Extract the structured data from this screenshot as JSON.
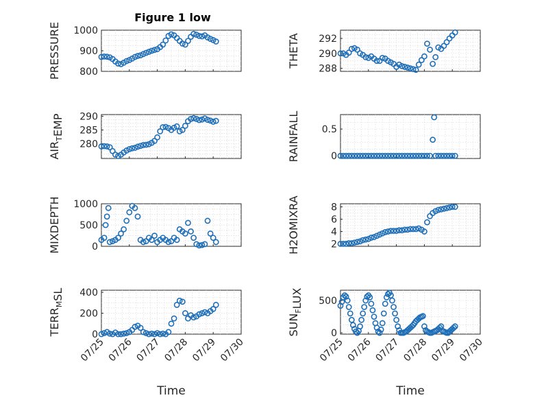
{
  "figure_title": "Figure 1 low",
  "colors": {
    "marker": "#1f6fb8",
    "axis": "#262626",
    "grid": "#dcdcdc"
  },
  "chart_data": [
    {
      "type": "scatter",
      "title": "Figure 1 low",
      "ylabel": "PRESSURE",
      "xlabel": "",
      "ylim": [
        800,
        1000
      ],
      "yticks": [
        "800",
        "900",
        "1000"
      ],
      "ytick_values": [
        800,
        900,
        1000
      ],
      "xlim": [
        0,
        5
      ],
      "grid": true,
      "show_xticklabels": false,
      "x": [
        0.0,
        0.1,
        0.2,
        0.3,
        0.4,
        0.5,
        0.6,
        0.7,
        0.8,
        0.9,
        1.0,
        1.1,
        1.2,
        1.3,
        1.4,
        1.5,
        1.6,
        1.7,
        1.8,
        1.9,
        2.0,
        2.1,
        2.2,
        2.3,
        2.4,
        2.5,
        2.6,
        2.7,
        2.8,
        2.9,
        3.0,
        3.1,
        3.2,
        3.3,
        3.4,
        3.5,
        3.6,
        3.7,
        3.8,
        3.9,
        4.0,
        4.1
      ],
      "y": [
        870,
        872,
        871,
        868,
        860,
        848,
        838,
        835,
        842,
        850,
        855,
        862,
        870,
        875,
        878,
        884,
        890,
        895,
        900,
        904,
        908,
        918,
        930,
        950,
        972,
        980,
        975,
        962,
        948,
        935,
        930,
        948,
        968,
        982,
        978,
        972,
        970,
        975,
        965,
        958,
        952,
        945
      ]
    },
    {
      "type": "scatter",
      "title": "",
      "ylabel": "THETA",
      "xlabel": "",
      "ylim": [
        287.6,
        293.1
      ],
      "yticks": [
        "288",
        "290",
        "292"
      ],
      "ytick_values": [
        288,
        290,
        292
      ],
      "xlim": [
        0,
        5
      ],
      "grid": true,
      "show_xticklabels": false,
      "x": [
        0.0,
        0.1,
        0.2,
        0.3,
        0.4,
        0.5,
        0.6,
        0.7,
        0.8,
        0.9,
        1.0,
        1.1,
        1.2,
        1.3,
        1.4,
        1.5,
        1.6,
        1.7,
        1.8,
        1.9,
        2.0,
        2.1,
        2.2,
        2.3,
        2.4,
        2.5,
        2.6,
        2.7,
        2.8,
        2.9,
        3.0,
        3.1,
        3.2,
        3.3,
        3.4,
        3.5,
        3.6,
        3.7,
        3.8,
        3.9,
        4.0,
        4.1
      ],
      "y": [
        290.0,
        290.0,
        289.8,
        290.1,
        290.6,
        290.7,
        290.5,
        290.0,
        289.8,
        289.5,
        289.4,
        289.6,
        289.3,
        289.0,
        289.0,
        289.4,
        289.3,
        289.0,
        288.8,
        288.6,
        288.2,
        288.5,
        288.3,
        288.2,
        288.1,
        288.0,
        287.9,
        287.8,
        288.5,
        289.1,
        289.6,
        291.3,
        290.5,
        288.6,
        289.5,
        290.8,
        290.6,
        291.0,
        291.5,
        292.0,
        292.4,
        292.8
      ]
    },
    {
      "type": "scatter",
      "title": "",
      "ylabel": "AIR_TEMP",
      "xlabel": "",
      "ylim": [
        274.6,
        290.6
      ],
      "yticks": [
        "280",
        "285",
        "290"
      ],
      "ytick_values": [
        280,
        285,
        290
      ],
      "xlim": [
        0,
        5
      ],
      "grid": true,
      "show_xticklabels": false,
      "x": [
        0.0,
        0.1,
        0.2,
        0.3,
        0.4,
        0.5,
        0.6,
        0.7,
        0.8,
        0.9,
        1.0,
        1.1,
        1.2,
        1.3,
        1.4,
        1.5,
        1.6,
        1.7,
        1.8,
        1.9,
        2.0,
        2.1,
        2.2,
        2.3,
        2.4,
        2.5,
        2.6,
        2.7,
        2.8,
        2.9,
        3.0,
        3.1,
        3.2,
        3.3,
        3.4,
        3.5,
        3.6,
        3.7,
        3.8,
        3.9,
        4.0,
        4.1
      ],
      "y": [
        279.0,
        279.1,
        279.0,
        278.7,
        277.3,
        276.0,
        275.5,
        276.0,
        276.8,
        277.5,
        278.0,
        278.3,
        278.5,
        278.9,
        279.2,
        279.5,
        279.6,
        279.8,
        280.3,
        281.0,
        282.3,
        284.5,
        286.0,
        286.1,
        285.7,
        285.0,
        285.8,
        286.3,
        284.5,
        285.0,
        286.5,
        288.2,
        289.0,
        289.3,
        289.0,
        288.6,
        288.8,
        289.2,
        288.7,
        288.4,
        288.0,
        288.3
      ]
    },
    {
      "type": "scatter",
      "title": "",
      "ylabel": "RAINFALL",
      "xlabel": "",
      "ylim": [
        -0.05,
        0.77
      ],
      "yticks": [
        "0",
        "0.5"
      ],
      "ytick_values": [
        0,
        0.5
      ],
      "xlim": [
        0,
        5
      ],
      "grid": true,
      "show_xticklabels": false,
      "x": [
        0.0,
        0.1,
        0.2,
        0.3,
        0.4,
        0.5,
        0.6,
        0.7,
        0.8,
        0.9,
        1.0,
        1.1,
        1.2,
        1.3,
        1.4,
        1.5,
        1.6,
        1.7,
        1.8,
        1.9,
        2.0,
        2.1,
        2.2,
        2.3,
        2.4,
        2.5,
        2.6,
        2.7,
        2.8,
        2.9,
        3.0,
        3.1,
        3.2,
        3.3,
        3.35,
        3.4,
        3.5,
        3.6,
        3.7,
        3.8,
        3.9,
        4.0,
        4.1
      ],
      "y": [
        0,
        0,
        0,
        0,
        0,
        0,
        0,
        0,
        0,
        0,
        0,
        0,
        0,
        0,
        0,
        0,
        0,
        0,
        0,
        0,
        0,
        0,
        0,
        0,
        0,
        0,
        0,
        0,
        0,
        0,
        0,
        0,
        0,
        0.3,
        0.72,
        0,
        0,
        0,
        0,
        0,
        0,
        0,
        0
      ]
    },
    {
      "type": "scatter",
      "title": "",
      "ylabel": "MIXDEPTH",
      "xlabel": "",
      "ylim": [
        0,
        1000
      ],
      "yticks": [
        "0",
        "500",
        "1000"
      ],
      "ytick_values": [
        0,
        500,
        1000
      ],
      "xlim": [
        0,
        5
      ],
      "grid": true,
      "show_xticklabels": false,
      "x": [
        0.0,
        0.1,
        0.15,
        0.2,
        0.25,
        0.3,
        0.4,
        0.5,
        0.6,
        0.7,
        0.8,
        0.9,
        1.0,
        1.1,
        1.2,
        1.3,
        1.4,
        1.5,
        1.6,
        1.7,
        1.8,
        1.9,
        2.0,
        2.1,
        2.2,
        2.3,
        2.4,
        2.5,
        2.6,
        2.7,
        2.8,
        2.9,
        3.0,
        3.1,
        3.2,
        3.3,
        3.4,
        3.5,
        3.6,
        3.7,
        3.8,
        3.9,
        4.0,
        4.1
      ],
      "y": [
        150,
        200,
        500,
        700,
        900,
        100,
        120,
        150,
        200,
        300,
        400,
        600,
        800,
        950,
        900,
        700,
        150,
        100,
        120,
        200,
        150,
        250,
        100,
        150,
        200,
        150,
        100,
        120,
        200,
        150,
        400,
        350,
        300,
        550,
        350,
        200,
        50,
        20,
        30,
        50,
        600,
        300,
        200,
        100
      ]
    },
    {
      "type": "scatter",
      "title": "",
      "ylabel": "H2OMIXRA",
      "xlabel": "",
      "ylim": [
        1.6,
        8.5
      ],
      "yticks": [
        "2",
        "4",
        "6",
        "8"
      ],
      "ytick_values": [
        2,
        4,
        6,
        8
      ],
      "xlim": [
        0,
        5
      ],
      "grid": true,
      "show_xticklabels": false,
      "x": [
        0.0,
        0.1,
        0.2,
        0.3,
        0.4,
        0.5,
        0.6,
        0.7,
        0.8,
        0.9,
        1.0,
        1.1,
        1.2,
        1.3,
        1.4,
        1.5,
        1.6,
        1.7,
        1.8,
        1.9,
        2.0,
        2.1,
        2.2,
        2.3,
        2.4,
        2.5,
        2.6,
        2.7,
        2.8,
        2.9,
        3.0,
        3.1,
        3.2,
        3.3,
        3.4,
        3.5,
        3.6,
        3.7,
        3.8,
        3.9,
        4.0,
        4.1
      ],
      "y": [
        2.0,
        2.0,
        2.0,
        2.1,
        2.1,
        2.2,
        2.3,
        2.4,
        2.6,
        2.7,
        2.8,
        3.0,
        3.1,
        3.3,
        3.5,
        3.7,
        3.9,
        4.0,
        4.1,
        4.1,
        4.1,
        4.2,
        4.2,
        4.3,
        4.3,
        4.4,
        4.4,
        4.4,
        4.5,
        4.3,
        4.0,
        5.5,
        6.5,
        7.0,
        7.3,
        7.5,
        7.6,
        7.7,
        7.8,
        7.9,
        8.0,
        8.0
      ]
    },
    {
      "type": "scatter",
      "title": "",
      "ylabel": "TERR_MSL",
      "xlabel": "Time",
      "ylim": [
        0,
        420
      ],
      "yticks": [
        "0",
        "200",
        "400"
      ],
      "ytick_values": [
        0,
        200,
        400
      ],
      "xlim": [
        0,
        5
      ],
      "grid": true,
      "show_xticklabels": true,
      "xticks": [
        "07/25",
        "07/26",
        "07/27",
        "07/28",
        "07/29",
        "07/30"
      ],
      "xtick_values": [
        0,
        1,
        2,
        3,
        4,
        5
      ],
      "x": [
        0.0,
        0.1,
        0.2,
        0.3,
        0.4,
        0.5,
        0.6,
        0.7,
        0.8,
        0.9,
        1.0,
        1.1,
        1.2,
        1.3,
        1.4,
        1.5,
        1.6,
        1.7,
        1.8,
        1.9,
        2.0,
        2.1,
        2.2,
        2.3,
        2.4,
        2.5,
        2.6,
        2.7,
        2.8,
        2.9,
        3.0,
        3.1,
        3.2,
        3.3,
        3.4,
        3.5,
        3.6,
        3.7,
        3.8,
        3.9,
        4.0,
        4.1
      ],
      "y": [
        0,
        10,
        20,
        5,
        0,
        15,
        0,
        0,
        5,
        10,
        20,
        40,
        70,
        80,
        60,
        20,
        10,
        0,
        5,
        0,
        10,
        0,
        5,
        0,
        20,
        100,
        150,
        280,
        320,
        310,
        200,
        150,
        180,
        160,
        170,
        190,
        200,
        210,
        200,
        220,
        240,
        280
      ]
    },
    {
      "type": "scatter",
      "title": "",
      "ylabel": "SUN_FLUX",
      "xlabel": "Time",
      "ylim": [
        -20,
        660
      ],
      "yticks": [
        "0",
        "500"
      ],
      "ytick_values": [
        0,
        500
      ],
      "xlim": [
        0,
        5
      ],
      "grid": true,
      "show_xticklabels": true,
      "xticks": [
        "07/25",
        "07/26",
        "07/27",
        "07/28",
        "07/29",
        "07/30"
      ],
      "xtick_values": [
        0,
        1,
        2,
        3,
        4,
        5
      ],
      "x": [
        0.0,
        0.05,
        0.1,
        0.15,
        0.2,
        0.25,
        0.3,
        0.35,
        0.4,
        0.45,
        0.5,
        0.55,
        0.6,
        0.65,
        0.7,
        0.75,
        0.8,
        0.85,
        0.9,
        0.95,
        1.0,
        1.05,
        1.1,
        1.15,
        1.2,
        1.25,
        1.3,
        1.35,
        1.4,
        1.45,
        1.5,
        1.55,
        1.6,
        1.65,
        1.7,
        1.75,
        1.8,
        1.85,
        1.9,
        1.95,
        2.0,
        2.05,
        2.1,
        2.15,
        2.2,
        2.25,
        2.3,
        2.35,
        2.4,
        2.45,
        2.5,
        2.55,
        2.6,
        2.65,
        2.7,
        2.75,
        2.8,
        2.85,
        2.9,
        2.95,
        3.0,
        3.05,
        3.1,
        3.15,
        3.2,
        3.25,
        3.3,
        3.35,
        3.4,
        3.45,
        3.5,
        3.55,
        3.6,
        3.65,
        3.7,
        3.75,
        3.8,
        3.85,
        3.9,
        3.95,
        4.0,
        4.05,
        4.1
      ],
      "y": [
        420,
        480,
        550,
        580,
        560,
        500,
        400,
        300,
        200,
        120,
        60,
        20,
        0,
        30,
        100,
        200,
        300,
        400,
        500,
        560,
        580,
        550,
        450,
        350,
        250,
        150,
        80,
        20,
        0,
        50,
        150,
        300,
        450,
        550,
        600,
        620,
        580,
        500,
        400,
        300,
        200,
        100,
        40,
        0,
        0,
        0,
        10,
        20,
        40,
        60,
        80,
        100,
        120,
        150,
        180,
        200,
        220,
        240,
        250,
        260,
        100,
        40,
        20,
        10,
        0,
        0,
        10,
        20,
        30,
        40,
        60,
        80,
        100,
        30,
        20,
        10,
        0,
        0,
        20,
        40,
        60,
        80,
        100
      ]
    }
  ]
}
